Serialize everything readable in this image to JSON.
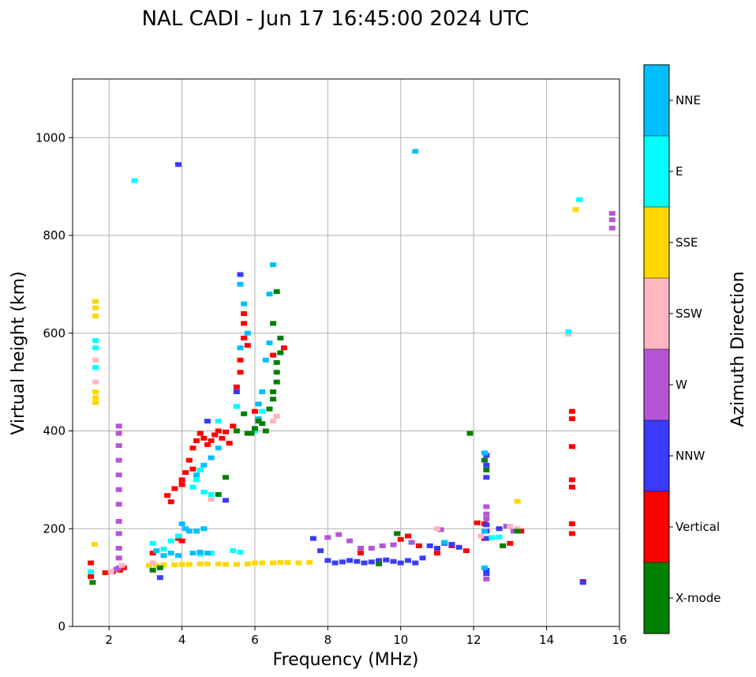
{
  "chart_data": {
    "type": "scatter",
    "title": "NAL CADI - Jun 17 16:45:00 2024 UTC",
    "xlabel": "Frequency (MHz)",
    "ylabel": "Virtual height (km)",
    "xlim": [
      1,
      16
    ],
    "ylim": [
      0,
      1120
    ],
    "xticks": [
      2,
      4,
      6,
      8,
      10,
      12,
      14,
      16
    ],
    "yticks": [
      0,
      200,
      400,
      600,
      800,
      1000
    ],
    "grid": true,
    "colorbar": {
      "label": "Azimuth Direction",
      "categories": [
        {
          "name": "X-mode",
          "color": "#008000"
        },
        {
          "name": "Vertical",
          "color": "#ff0000"
        },
        {
          "name": "NNW",
          "color": "#3a3aff"
        },
        {
          "name": "W",
          "color": "#b455d6"
        },
        {
          "name": "SSW",
          "color": "#ffb6c1"
        },
        {
          "name": "SSE",
          "color": "#ffd700"
        },
        {
          "name": "E",
          "color": "#00ffff"
        },
        {
          "name": "NNE",
          "color": "#00bfff"
        }
      ]
    },
    "series": [
      {
        "name": "SSE",
        "points": [
          [
            1.6,
            168
          ],
          [
            1.63,
            665
          ],
          [
            1.63,
            652
          ],
          [
            1.63,
            635
          ],
          [
            1.63,
            480
          ],
          [
            1.63,
            468
          ],
          [
            1.63,
            458
          ],
          [
            3.1,
            125
          ],
          [
            3.3,
            125
          ],
          [
            3.5,
            126
          ],
          [
            3.8,
            126
          ],
          [
            4.0,
            127
          ],
          [
            4.2,
            127
          ],
          [
            4.5,
            128
          ],
          [
            4.7,
            128
          ],
          [
            5.0,
            128
          ],
          [
            5.2,
            127
          ],
          [
            5.5,
            127
          ],
          [
            5.8,
            128
          ],
          [
            6.0,
            130
          ],
          [
            6.2,
            130
          ],
          [
            6.5,
            130
          ],
          [
            6.7,
            131
          ],
          [
            6.9,
            131
          ],
          [
            7.2,
            130
          ],
          [
            7.5,
            131
          ],
          [
            13.2,
            256
          ],
          [
            14.8,
            853
          ]
        ]
      },
      {
        "name": "Vertical",
        "points": [
          [
            1.5,
            102
          ],
          [
            1.5,
            130
          ],
          [
            1.9,
            110
          ],
          [
            2.1,
            112
          ],
          [
            2.3,
            115
          ],
          [
            2.4,
            120
          ],
          [
            3.6,
            268
          ],
          [
            3.7,
            255
          ],
          [
            3.8,
            282
          ],
          [
            4.0,
            300
          ],
          [
            4.0,
            290
          ],
          [
            4.1,
            315
          ],
          [
            4.2,
            340
          ],
          [
            4.3,
            365
          ],
          [
            4.3,
            322
          ],
          [
            4.4,
            380
          ],
          [
            4.5,
            395
          ],
          [
            4.6,
            385
          ],
          [
            4.7,
            372
          ],
          [
            4.8,
            380
          ],
          [
            4.9,
            392
          ],
          [
            5.0,
            400
          ],
          [
            5.1,
            385
          ],
          [
            5.2,
            398
          ],
          [
            5.3,
            375
          ],
          [
            5.4,
            410
          ],
          [
            5.5,
            450
          ],
          [
            5.5,
            490
          ],
          [
            5.6,
            520
          ],
          [
            5.6,
            545
          ],
          [
            5.7,
            590
          ],
          [
            5.7,
            620
          ],
          [
            5.7,
            640
          ],
          [
            5.8,
            575
          ],
          [
            6.0,
            440
          ],
          [
            6.5,
            555
          ],
          [
            6.8,
            570
          ],
          [
            4.0,
            175
          ],
          [
            3.9,
            180
          ],
          [
            3.2,
            150
          ],
          [
            8.9,
            150
          ],
          [
            10.0,
            178
          ],
          [
            10.2,
            185
          ],
          [
            10.5,
            165
          ],
          [
            11.0,
            150
          ],
          [
            11.4,
            165
          ],
          [
            11.8,
            155
          ],
          [
            12.1,
            212
          ],
          [
            12.3,
            210
          ],
          [
            12.3,
            180
          ],
          [
            13.0,
            170
          ],
          [
            13.3,
            195
          ],
          [
            14.7,
            440
          ],
          [
            14.7,
            425
          ],
          [
            14.7,
            368
          ],
          [
            14.7,
            300
          ],
          [
            14.7,
            285
          ],
          [
            14.7,
            210
          ],
          [
            14.7,
            190
          ],
          [
            15.0,
            92
          ]
        ]
      },
      {
        "name": "NNW",
        "points": [
          [
            3.9,
            945
          ],
          [
            5.6,
            720
          ],
          [
            5.5,
            480
          ],
          [
            5.2,
            258
          ],
          [
            4.7,
            420
          ],
          [
            3.4,
            100
          ],
          [
            4.8,
            150
          ],
          [
            7.6,
            180
          ],
          [
            7.8,
            155
          ],
          [
            8.0,
            135
          ],
          [
            8.2,
            130
          ],
          [
            8.4,
            132
          ],
          [
            8.6,
            135
          ],
          [
            8.8,
            133
          ],
          [
            9.0,
            130
          ],
          [
            9.2,
            132
          ],
          [
            9.4,
            135
          ],
          [
            9.6,
            136
          ],
          [
            9.8,
            133
          ],
          [
            10.0,
            130
          ],
          [
            10.2,
            135
          ],
          [
            10.4,
            130
          ],
          [
            10.6,
            140
          ],
          [
            10.8,
            165
          ],
          [
            11.0,
            160
          ],
          [
            11.2,
            170
          ],
          [
            11.4,
            168
          ],
          [
            11.6,
            162
          ],
          [
            12.35,
            350
          ],
          [
            12.35,
            330
          ],
          [
            12.35,
            305
          ],
          [
            12.35,
            208
          ],
          [
            12.35,
            195
          ],
          [
            12.35,
            180
          ],
          [
            12.35,
            115
          ],
          [
            12.35,
            108
          ],
          [
            12.7,
            200
          ],
          [
            15.0,
            90
          ]
        ]
      },
      {
        "name": "W",
        "points": [
          [
            2.27,
            410
          ],
          [
            2.27,
            395
          ],
          [
            2.27,
            370
          ],
          [
            2.27,
            340
          ],
          [
            2.27,
            310
          ],
          [
            2.27,
            280
          ],
          [
            2.27,
            250
          ],
          [
            2.27,
            215
          ],
          [
            2.27,
            190
          ],
          [
            2.27,
            160
          ],
          [
            2.27,
            140
          ],
          [
            2.27,
            120
          ],
          [
            2.2,
            117
          ],
          [
            8.0,
            182
          ],
          [
            8.3,
            188
          ],
          [
            8.6,
            175
          ],
          [
            8.9,
            160
          ],
          [
            9.2,
            160
          ],
          [
            9.5,
            165
          ],
          [
            9.8,
            167
          ],
          [
            10.3,
            172
          ],
          [
            11.1,
            198
          ],
          [
            12.35,
            245
          ],
          [
            12.35,
            230
          ],
          [
            12.35,
            220
          ],
          [
            12.35,
            97
          ],
          [
            12.9,
            205
          ],
          [
            13.1,
            195
          ],
          [
            15.8,
            845
          ],
          [
            15.8,
            832
          ],
          [
            15.8,
            815
          ]
        ]
      },
      {
        "name": "SSW",
        "points": [
          [
            1.63,
            545
          ],
          [
            1.63,
            500
          ],
          [
            2.05,
            112
          ],
          [
            2.35,
            125
          ],
          [
            3.2,
            130
          ],
          [
            4.8,
            260
          ],
          [
            6.5,
            420
          ],
          [
            6.6,
            430
          ],
          [
            11.0,
            200
          ],
          [
            12.2,
            185
          ],
          [
            13.0,
            205
          ],
          [
            13.2,
            200
          ],
          [
            14.6,
            598
          ]
        ]
      },
      {
        "name": "E",
        "points": [
          [
            1.63,
            585
          ],
          [
            1.63,
            570
          ],
          [
            1.63,
            530
          ],
          [
            1.5,
            112
          ],
          [
            2.7,
            912
          ],
          [
            3.2,
            170
          ],
          [
            3.5,
            158
          ],
          [
            3.7,
            175
          ],
          [
            3.9,
            185
          ],
          [
            4.3,
            285
          ],
          [
            4.4,
            300
          ],
          [
            4.5,
            320
          ],
          [
            4.6,
            275
          ],
          [
            4.8,
            270
          ],
          [
            5.0,
            420
          ],
          [
            5.5,
            450
          ],
          [
            6.2,
            440
          ],
          [
            6.0,
            400
          ],
          [
            4.5,
            148
          ],
          [
            4.8,
            150
          ],
          [
            5.4,
            155
          ],
          [
            5.6,
            152
          ],
          [
            12.3,
            355
          ],
          [
            12.5,
            182
          ],
          [
            12.7,
            183
          ],
          [
            14.6,
            603
          ],
          [
            14.9,
            873
          ]
        ]
      },
      {
        "name": "NNE",
        "points": [
          [
            3.3,
            155
          ],
          [
            3.5,
            145
          ],
          [
            3.7,
            150
          ],
          [
            3.9,
            145
          ],
          [
            4.0,
            210
          ],
          [
            4.1,
            200
          ],
          [
            4.2,
            195
          ],
          [
            4.4,
            195
          ],
          [
            4.6,
            200
          ],
          [
            4.3,
            150
          ],
          [
            4.5,
            152
          ],
          [
            4.7,
            150
          ],
          [
            4.4,
            310
          ],
          [
            4.6,
            330
          ],
          [
            4.8,
            345
          ],
          [
            5.0,
            365
          ],
          [
            5.7,
            660
          ],
          [
            5.6,
            700
          ],
          [
            5.8,
            600
          ],
          [
            5.6,
            570
          ],
          [
            6.1,
            425
          ],
          [
            6.1,
            455
          ],
          [
            6.2,
            480
          ],
          [
            6.3,
            545
          ],
          [
            6.4,
            580
          ],
          [
            6.4,
            680
          ],
          [
            6.5,
            740
          ],
          [
            10.4,
            972
          ],
          [
            11.2,
            172
          ],
          [
            12.3,
            355
          ],
          [
            12.3,
            195
          ],
          [
            12.3,
            120
          ]
        ]
      },
      {
        "name": "X-mode",
        "points": [
          [
            1.55,
            90
          ],
          [
            3.2,
            115
          ],
          [
            3.4,
            120
          ],
          [
            5.0,
            270
          ],
          [
            5.2,
            305
          ],
          [
            5.5,
            400
          ],
          [
            5.7,
            435
          ],
          [
            5.8,
            395
          ],
          [
            5.9,
            395
          ],
          [
            6.0,
            405
          ],
          [
            6.1,
            420
          ],
          [
            6.2,
            415
          ],
          [
            6.3,
            400
          ],
          [
            6.4,
            445
          ],
          [
            6.5,
            465
          ],
          [
            6.5,
            480
          ],
          [
            6.6,
            500
          ],
          [
            6.6,
            520
          ],
          [
            6.6,
            540
          ],
          [
            6.7,
            560
          ],
          [
            6.7,
            590
          ],
          [
            6.5,
            620
          ],
          [
            6.6,
            685
          ],
          [
            9.4,
            128
          ],
          [
            9.9,
            190
          ],
          [
            11.9,
            395
          ],
          [
            12.3,
            340
          ],
          [
            12.35,
            320
          ],
          [
            12.8,
            165
          ],
          [
            13.2,
            195
          ]
        ]
      }
    ]
  }
}
